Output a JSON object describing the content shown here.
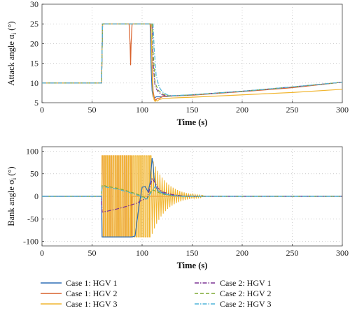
{
  "chart_data": [
    {
      "type": "line",
      "xlabel": "Time (s)",
      "ylabel": "Attack angle α_i (°)",
      "ylabel_main": "Attack angle α",
      "ylabel_sub": "i",
      "ylabel_unit": " (°)",
      "xlim": [
        0,
        300
      ],
      "ylim": [
        5,
        30
      ],
      "xticks": [
        0,
        50,
        100,
        150,
        200,
        250,
        300
      ],
      "yticks": [
        5,
        10,
        15,
        20,
        25,
        30
      ],
      "grid": true,
      "series": [
        {
          "name": "Case 1: HGV 1",
          "color": "#2f6fb5",
          "dash": "",
          "x": [
            0,
            59.5,
            60.5,
            108,
            109,
            110,
            111,
            112,
            113,
            114,
            116,
            120,
            125,
            130,
            150,
            200,
            250,
            300
          ],
          "y": [
            10,
            10,
            25,
            25,
            14,
            8,
            6.5,
            6.2,
            6.3,
            6.5,
            6.5,
            6.5,
            6.6,
            6.7,
            7.0,
            7.9,
            8.9,
            10.2
          ]
        },
        {
          "name": "Case 1: HGV 2",
          "color": "#d9612b",
          "dash": "",
          "x": [
            0,
            59.5,
            60.5,
            87,
            88,
            88.5,
            89,
            90,
            108,
            109,
            110,
            111,
            112,
            113,
            115,
            118,
            120,
            125,
            130,
            150,
            200,
            250,
            300
          ],
          "y": [
            10,
            10,
            25,
            25,
            20,
            14.5,
            20,
            25,
            25,
            23,
            15,
            8,
            6.5,
            5.6,
            6.0,
            6.2,
            6.5,
            6.7,
            6.7,
            6.9,
            7.8,
            8.8,
            10.2
          ]
        },
        {
          "name": "Case 1: HGV 3",
          "color": "#f1b52f",
          "dash": "",
          "x": [
            0,
            59.5,
            60.5,
            109,
            110,
            111,
            112,
            113,
            114,
            115,
            117,
            120,
            125,
            130,
            150,
            200,
            250,
            300
          ],
          "y": [
            10,
            10,
            25,
            25,
            12,
            7,
            5.7,
            5.3,
            5.6,
            5.4,
            5.8,
            6.0,
            6.1,
            6.2,
            6.4,
            7.0,
            7.6,
            8.4
          ]
        },
        {
          "name": "Case 2: HGV 1",
          "color": "#7b3294",
          "dash": "6,2,1.5,2",
          "x": [
            0,
            59.5,
            60.5,
            110,
            111,
            113,
            116,
            120,
            125,
            130,
            150,
            200,
            250,
            300
          ],
          "y": [
            10,
            10,
            25,
            25,
            15,
            9,
            7.8,
            7.0,
            6.7,
            6.7,
            7.0,
            7.9,
            9.0,
            10.2
          ]
        },
        {
          "name": "Case 2: HGV 2",
          "color": "#7fa833",
          "dash": "5,3",
          "x": [
            0,
            59.5,
            60.5,
            110,
            111,
            113,
            116,
            120,
            125,
            130,
            150,
            200,
            250,
            300
          ],
          "y": [
            10,
            10,
            25,
            25,
            18,
            10,
            8.2,
            7.3,
            6.8,
            6.7,
            7.0,
            7.9,
            9.0,
            10.2
          ]
        },
        {
          "name": "Case 2: HGV 3",
          "color": "#4fb3d9",
          "dash": "6,2,1.5,2",
          "x": [
            0,
            59.5,
            60.5,
            111,
            112,
            114,
            117,
            120,
            125,
            130,
            150,
            200,
            250,
            300
          ],
          "y": [
            10,
            10,
            25,
            25,
            19,
            12,
            9.0,
            7.8,
            7.0,
            6.8,
            7.0,
            7.9,
            9.0,
            10.2
          ]
        }
      ]
    },
    {
      "type": "line",
      "xlabel": "Time (s)",
      "ylabel": "Bank angle σ_i (°)",
      "ylabel_main": "Bank angle σ",
      "ylabel_sub": "i",
      "ylabel_unit": " (°)",
      "xlim": [
        0,
        300
      ],
      "ylim": [
        -110,
        110
      ],
      "xticks": [
        0,
        50,
        100,
        150,
        200,
        250,
        300
      ],
      "yticks": [
        -100,
        -50,
        0,
        50,
        100
      ],
      "grid": true,
      "series": [
        {
          "name": "Case 1: HGV 1",
          "color": "#2f6fb5",
          "dash": "",
          "x": [
            0,
            59.5,
            60,
            61,
            89.5,
            90,
            93,
            97,
            100,
            103,
            106,
            108,
            110,
            111,
            112,
            114,
            116,
            120,
            125,
            130,
            135,
            140,
            150,
            300
          ],
          "y": [
            0,
            0,
            -90,
            -90,
            -90,
            -90,
            -88,
            -20,
            20,
            22,
            10,
            30,
            85,
            70,
            40,
            20,
            12,
            8,
            4,
            2,
            1,
            0,
            0,
            0
          ]
        },
        {
          "name": "Case 2: HGV 1",
          "color": "#7b3294",
          "dash": "6,2,1.5,2",
          "x": [
            0,
            59.5,
            60,
            65,
            75,
            85,
            95,
            100,
            105,
            108,
            110,
            113,
            116,
            120,
            130,
            140,
            150,
            300
          ],
          "y": [
            0,
            0,
            -35,
            -33,
            -28,
            -22,
            -15,
            -8,
            -5,
            20,
            40,
            30,
            18,
            10,
            4,
            1,
            0,
            0
          ]
        },
        {
          "name": "Case 2: HGV 2",
          "color": "#7fa833",
          "dash": "5,3",
          "x": [
            0,
            59.5,
            60,
            65,
            75,
            85,
            95,
            100,
            105,
            110,
            115,
            120,
            130,
            140,
            150,
            300
          ],
          "y": [
            0,
            0,
            25,
            22,
            18,
            12,
            5,
            0,
            -5,
            15,
            10,
            5,
            2,
            0,
            0,
            0
          ]
        },
        {
          "name": "Case 2: HGV 3",
          "color": "#4fb3d9",
          "dash": "6,2,1.5,2",
          "x": [
            0,
            59.5,
            60,
            65,
            75,
            85,
            95,
            100,
            105,
            110,
            113,
            117,
            120,
            130,
            140,
            150,
            300
          ],
          "y": [
            0,
            0,
            22,
            20,
            16,
            10,
            3,
            -2,
            -6,
            12,
            22,
            12,
            6,
            2,
            0,
            0,
            0
          ]
        }
      ],
      "bang_bang_series": [
        {
          "name": "Case 1: HGV 2",
          "color": "#d9612b",
          "start": 60,
          "end": 89,
          "amp": 90,
          "zero_after": 90
        },
        {
          "name": "Case 1: HGV 3",
          "color": "#f1b52f",
          "start": 60,
          "end": 108,
          "amp": 90,
          "decay_start": 109,
          "decay_end": 160,
          "decay_amp0": 90,
          "decay_period": 2.2
        }
      ]
    }
  ],
  "legend": {
    "placement": "bottom",
    "entries": [
      {
        "label": "Case 1: HGV 1",
        "color": "#2f6fb5",
        "dash": ""
      },
      {
        "label": "Case 2: HGV 1",
        "color": "#7b3294",
        "dash": "6,2,1.5,2"
      },
      {
        "label": "Case 1: HGV 2",
        "color": "#d9612b",
        "dash": ""
      },
      {
        "label": "Case 2: HGV 2",
        "color": "#7fa833",
        "dash": "5,3"
      },
      {
        "label": "Case 1: HGV 3",
        "color": "#f1b52f",
        "dash": ""
      },
      {
        "label": "Case 2: HGV 3",
        "color": "#4fb3d9",
        "dash": "6,2,1.5,2"
      }
    ]
  }
}
